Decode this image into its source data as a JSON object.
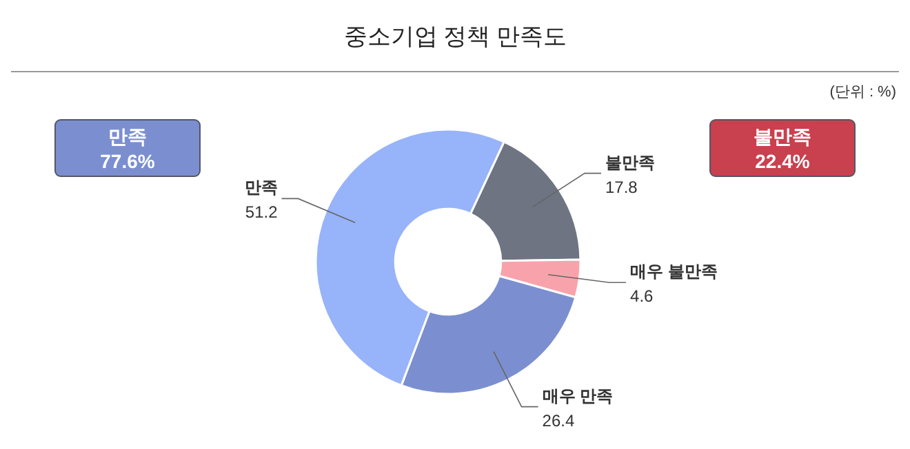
{
  "chart_data": {
    "type": "donut",
    "title": "중소기업 정책 만족도",
    "categories": [
      "불만족",
      "매우 불만족",
      "매우 만족",
      "만족"
    ],
    "values": [
      17.8,
      4.6,
      26.4,
      51.2
    ],
    "colors": [
      "#6e7482",
      "#f8a3ab",
      "#7b8fd0",
      "#97b3f9"
    ],
    "data_labels": true,
    "annotations": [
      "(단위 : %)",
      "만족 77.6%",
      "불만족 22.4%"
    ]
  }
}
